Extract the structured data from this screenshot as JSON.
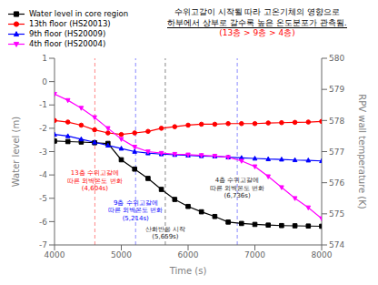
{
  "chart_data": {
    "type": "line",
    "title": [
      "수위고갈이 시작될 따라 고온기체의 영향으로",
      "하부에서 상부로 갈수록 높은 온도분포가 관측됨."
    ],
    "subtitle": {
      "text": "(13층 > 9층 > 4층)",
      "color": "#ff0000"
    },
    "xlabel": "Time (s)",
    "ylabel": "Water level (m)",
    "y2label": "RPV wall temperature (K)",
    "x": [
      4000,
      4200,
      4400,
      4600,
      4800,
      5000,
      5200,
      5400,
      5600,
      5800,
      6000,
      6200,
      6400,
      6600,
      6800,
      7000,
      7200,
      7400,
      7600,
      7800,
      8000
    ],
    "xlim": [
      4000,
      8000
    ],
    "xticks": [
      4000,
      5000,
      6000,
      7000,
      8000
    ],
    "ylim": [
      -7,
      1
    ],
    "yticks": [
      -7,
      -6,
      -5,
      -4,
      -3,
      -2,
      -1,
      0,
      1
    ],
    "y2lim": [
      574,
      580
    ],
    "y2ticks": [
      574,
      575,
      576,
      577,
      578,
      579,
      580
    ],
    "series": [
      {
        "name": "Water level in core region",
        "color": "#000000",
        "marker": "square",
        "line_style": "solid",
        "axis": "y",
        "values": [
          -2.55,
          -2.57,
          -2.59,
          -2.62,
          -2.65,
          -3.35,
          -3.75,
          -4.15,
          -4.62,
          -5.05,
          -5.35,
          -5.58,
          -5.78,
          -6.02,
          -6.08,
          -6.12,
          -6.15,
          -6.17,
          -6.18,
          -6.19,
          -6.2
        ]
      },
      {
        "name": "13th floor (HS20013)",
        "color": "#ff0000",
        "marker": "circle",
        "line_style": "solid",
        "axis": "y2",
        "values": [
          578.0,
          577.95,
          577.85,
          577.7,
          577.6,
          577.55,
          577.6,
          577.65,
          577.75,
          577.8,
          577.85,
          577.88,
          577.88,
          577.9,
          577.9,
          577.9,
          577.92,
          577.93,
          577.94,
          577.95,
          577.97
        ]
      },
      {
        "name": "9th floor (HS20009)",
        "color": "#0000ff",
        "marker": "triangle_up",
        "line_style": "solid",
        "axis": "y2",
        "values": [
          577.55,
          577.5,
          577.4,
          577.3,
          577.2,
          577.1,
          577.0,
          576.95,
          576.92,
          576.9,
          576.88,
          576.86,
          576.85,
          576.82,
          576.8,
          576.78,
          576.76,
          576.75,
          576.73,
          576.72,
          576.7
        ]
      },
      {
        "name": "4th floor (HS20004)",
        "color": "#ff00ff",
        "marker": "triangle_down",
        "line_style": "solid",
        "axis": "y2",
        "values": [
          578.85,
          578.65,
          578.4,
          578.1,
          577.75,
          577.4,
          577.15,
          577.0,
          576.95,
          576.92,
          576.9,
          576.88,
          576.86,
          576.82,
          576.7,
          576.52,
          576.2,
          575.85,
          575.5,
          575.2,
          574.85
        ]
      }
    ],
    "vlines": [
      {
        "x": 4604,
        "color": "#ff8888",
        "line_style": "dashed"
      },
      {
        "x": 5214,
        "color": "#8888ff",
        "line_style": "dashed"
      },
      {
        "x": 5659,
        "color": "#888888",
        "line_style": "dashed"
      },
      {
        "x": 6736,
        "color": "#8888ff",
        "line_style": "dashed"
      }
    ],
    "annotations": [
      {
        "x": 4604,
        "text": [
          "13층 수위고갈에",
          "따른 외벽온도 변화",
          "(4,604s)"
        ],
        "color": "#ff0000"
      },
      {
        "x": 5214,
        "text": [
          "9층 수위고갈에",
          "따른 외벽온도 변화",
          "(5,214s)"
        ],
        "color": "#0000ff"
      },
      {
        "x": 5659,
        "text": [
          "산화반응 시작",
          "(5,659s)"
        ],
        "color": "#222222"
      },
      {
        "x": 6736,
        "text": [
          "4층 수위고갈에",
          "따른 외벽온도 변화",
          "(6,736s)"
        ],
        "color": "#222222"
      }
    ],
    "legend": "upper left",
    "grid": false,
    "background_color": "#ffffff"
  }
}
